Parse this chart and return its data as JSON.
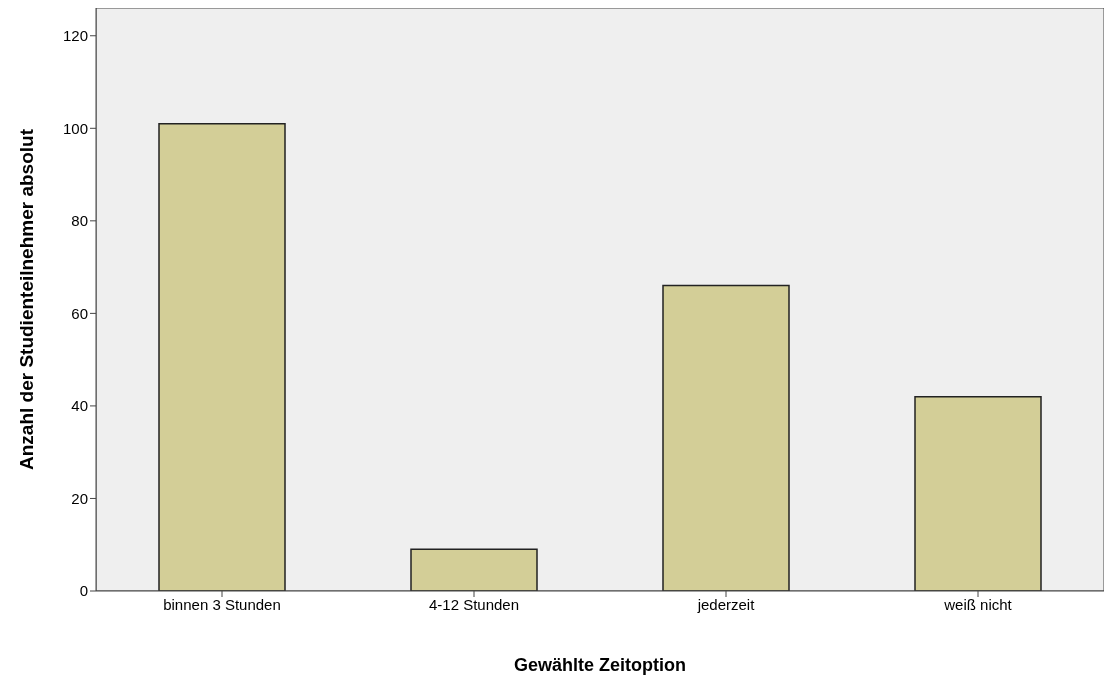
{
  "chart_data": {
    "type": "bar",
    "categories": [
      "binnen 3 Stunden",
      "4-12 Stunden",
      "jederzeit",
      "weiß nicht"
    ],
    "values": [
      101,
      9,
      66,
      42
    ],
    "color": "#d3ce97",
    "xlabel": "Gewählte Zeitoption",
    "ylabel": "Anzahl der Studienteilnehmer absolut",
    "ylim": [
      0,
      126
    ],
    "yticks": [
      0,
      20,
      40,
      60,
      80,
      100,
      120
    ],
    "grid": false
  }
}
